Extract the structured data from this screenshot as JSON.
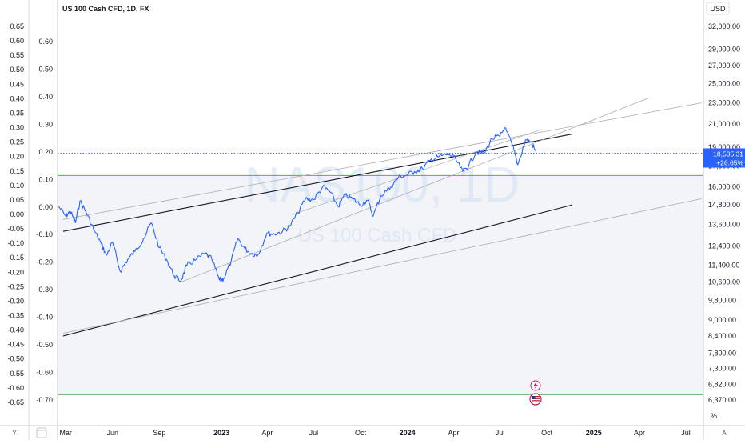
{
  "header": {
    "symbol_title": "US 100 Cash CFD, 1D, FX"
  },
  "watermark": {
    "main": "NAS100, 1D",
    "sub": "US 100 Cash CFD"
  },
  "currency_label": "USD",
  "percent_label": "%",
  "bottom_buttons": {
    "y": "Y",
    "a": "A"
  },
  "price_tag": {
    "price": "18,505.31",
    "change": "+26.65%"
  },
  "colors": {
    "series": "#2962ff",
    "trendline_dark": "#131722",
    "trendline_light": "#b2b5be",
    "horizontal_line": "#4caf50",
    "dotted_line": "#2962ff",
    "price_tag_bg": "#2962ff",
    "shade": "#f0f1f5"
  },
  "chart_data": {
    "type": "line",
    "title": "US 100 Cash CFD, 1D, FX",
    "x_ticks": [
      "Mar",
      "Jun",
      "Sep",
      "2023",
      "Apr",
      "Jul",
      "Oct",
      "2024",
      "Apr",
      "Jul",
      "Oct",
      "2025",
      "Apr",
      "Jul"
    ],
    "left_axis_ticks": [
      "0.65",
      "0.60",
      "0.55",
      "0.50",
      "0.45",
      "0.40",
      "0.35",
      "0.30",
      "0.25",
      "0.20",
      "0.15",
      "0.10",
      "0.05",
      "0.00",
      "-0.05",
      "-0.10",
      "-0.15",
      "-0.20",
      "-0.25",
      "-0.30",
      "-0.35",
      "-0.40",
      "-0.45",
      "-0.50",
      "-0.55",
      "-0.60",
      "-0.65"
    ],
    "inner_axis_ticks": [
      "0.60",
      "0.50",
      "0.40",
      "0.30",
      "0.20",
      "0.10",
      "0.00",
      "-0.10",
      "-0.20",
      "-0.30",
      "-0.40",
      "-0.50",
      "-0.60",
      "-0.70"
    ],
    "right_axis_ticks": [
      "32,000.00",
      "29,000.00",
      "27,000.00",
      "25,000.00",
      "23,000.00",
      "21,000.00",
      "19,000.00",
      "17,500.00",
      "16,000.00",
      "14,800.00",
      "13,600.00",
      "12,400.00",
      "11,400.00",
      "10,600.00",
      "9,800.00",
      "9,000.00",
      "8,400.00",
      "7,800.00",
      "7,300.00",
      "6,820.00",
      "6,370.00"
    ],
    "right_axis_scale": "log",
    "horizontal_levels": [
      16800,
      6520
    ],
    "series": [
      {
        "values_time_price": [
          [
            "2022-02-15",
            14700
          ],
          [
            "2022-03-01",
            14100
          ],
          [
            "2022-03-10",
            14400
          ],
          [
            "2022-03-20",
            13700
          ],
          [
            "2022-03-29",
            15050
          ],
          [
            "2022-04-10",
            14350
          ],
          [
            "2022-04-25",
            13300
          ],
          [
            "2022-05-10",
            12500
          ],
          [
            "2022-05-20",
            11900
          ],
          [
            "2022-06-01",
            12600
          ],
          [
            "2022-06-16",
            11100
          ],
          [
            "2022-07-01",
            11700
          ],
          [
            "2022-07-15",
            12100
          ],
          [
            "2022-08-01",
            12800
          ],
          [
            "2022-08-16",
            13700
          ],
          [
            "2022-09-01",
            12300
          ],
          [
            "2022-09-15",
            11700
          ],
          [
            "2022-09-30",
            10900
          ],
          [
            "2022-10-13",
            10650
          ],
          [
            "2022-10-25",
            11400
          ],
          [
            "2022-11-10",
            11650
          ],
          [
            "2022-11-30",
            12000
          ],
          [
            "2022-12-13",
            11700
          ],
          [
            "2022-12-28",
            10700
          ],
          [
            "2023-01-05",
            10750
          ],
          [
            "2023-01-20",
            11600
          ],
          [
            "2023-02-02",
            12800
          ],
          [
            "2023-02-16",
            12250
          ],
          [
            "2023-03-01",
            12000
          ],
          [
            "2023-03-13",
            11900
          ],
          [
            "2023-03-31",
            13100
          ],
          [
            "2023-04-15",
            13050
          ],
          [
            "2023-05-01",
            13200
          ],
          [
            "2023-05-15",
            13500
          ],
          [
            "2023-05-31",
            14300
          ],
          [
            "2023-06-15",
            15200
          ],
          [
            "2023-07-01",
            15150
          ],
          [
            "2023-07-19",
            16000
          ],
          [
            "2023-08-01",
            15700
          ],
          [
            "2023-08-18",
            14700
          ],
          [
            "2023-09-01",
            15450
          ],
          [
            "2023-09-15",
            15200
          ],
          [
            "2023-10-01",
            14800
          ],
          [
            "2023-10-15",
            15100
          ],
          [
            "2023-10-26",
            14100
          ],
          [
            "2023-11-10",
            15400
          ],
          [
            "2023-11-30",
            16000
          ],
          [
            "2023-12-15",
            16700
          ],
          [
            "2023-12-29",
            16800
          ],
          [
            "2024-01-15",
            17100
          ],
          [
            "2024-01-31",
            17300
          ],
          [
            "2024-02-15",
            17950
          ],
          [
            "2024-03-01",
            18200
          ],
          [
            "2024-03-20",
            18400
          ],
          [
            "2024-04-01",
            18250
          ],
          [
            "2024-04-19",
            17100
          ],
          [
            "2024-05-01",
            17600
          ],
          [
            "2024-05-15",
            18600
          ],
          [
            "2024-05-31",
            18500
          ],
          [
            "2024-06-15",
            19700
          ],
          [
            "2024-07-01",
            19900
          ],
          [
            "2024-07-10",
            20650
          ],
          [
            "2024-07-25",
            19200
          ],
          [
            "2024-08-05",
            17600
          ],
          [
            "2024-08-20",
            19600
          ],
          [
            "2024-09-01",
            19400
          ],
          [
            "2024-09-10",
            18505
          ]
        ]
      }
    ]
  }
}
